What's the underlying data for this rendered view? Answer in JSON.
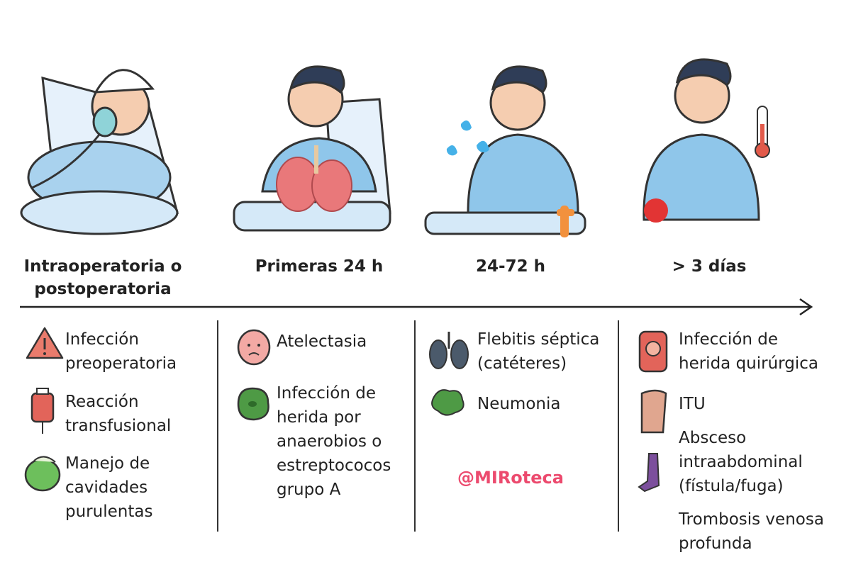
{
  "columns": [
    {
      "stage": "Intraoperatoria o postoperatoria",
      "items": [
        "Infección preoperatoria",
        "Reacción transfusional",
        "Manejo de cavidades purulentas"
      ]
    },
    {
      "stage": "Primeras 24 h",
      "items": [
        "Atelectasia",
        "Infección de herida por anaerobios o estreptococos grupo A"
      ]
    },
    {
      "stage": "24-72 h",
      "items": [
        "Flebitis séptica (catéteres)",
        "Neumonia"
      ]
    },
    {
      "stage": "> 3 días",
      "items": [
        "Infección de herida quirúrgica",
        "ITU",
        "Absceso intraabdominal (fístula/fuga)",
        "Trombosis venosa profunda"
      ]
    }
  ],
  "watermark": "@MIRoteca"
}
